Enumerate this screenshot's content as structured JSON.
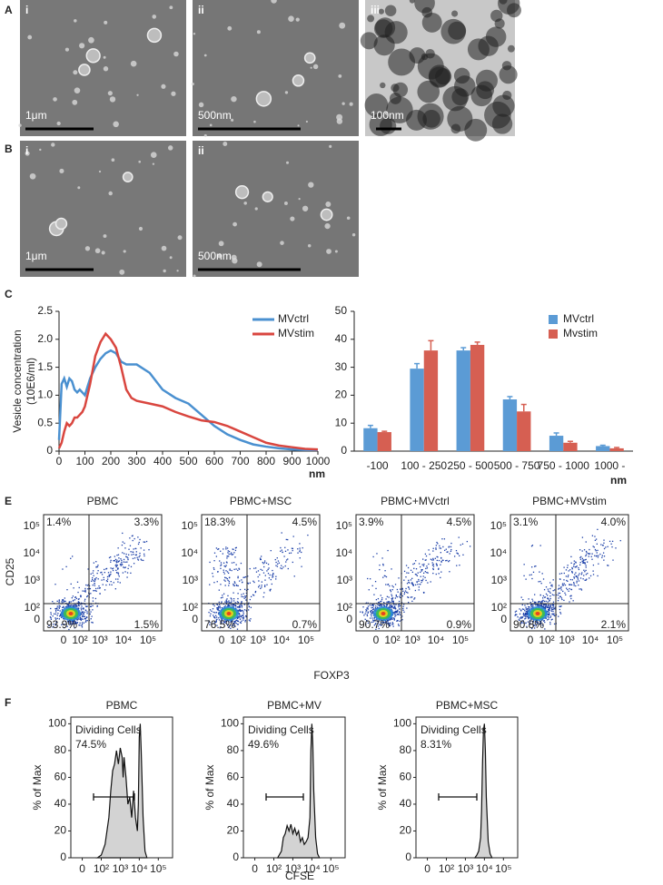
{
  "panel_labels": [
    "A",
    "B",
    "C",
    "E",
    "F"
  ],
  "micrographs": [
    {
      "label": "i",
      "scale": "1μm"
    },
    {
      "label": "ii",
      "scale": "500nm"
    },
    {
      "label": "iii",
      "scale": "100nm"
    },
    {
      "label": "i",
      "scale": "1μm"
    },
    {
      "label": "ii",
      "scale": "500nm"
    }
  ],
  "chart_data": [
    {
      "type": "line",
      "y_label": [
        "Vesicle concentration",
        "(10E6/ml)"
      ],
      "x_unit": "nm",
      "legend": "upper right",
      "x": [
        0,
        10,
        20,
        30,
        40,
        50,
        60,
        70,
        80,
        90,
        100,
        120,
        140,
        160,
        180,
        200,
        220,
        240,
        260,
        280,
        300,
        350,
        400,
        450,
        500,
        550,
        600,
        650,
        700,
        750,
        800,
        850,
        900,
        950,
        1000
      ],
      "series": [
        {
          "name": "MVctrl",
          "color": "#4a90d0",
          "values": [
            0.2,
            1.2,
            1.3,
            1.15,
            1.3,
            1.25,
            1.1,
            1.05,
            1.1,
            1.05,
            1.0,
            1.3,
            1.5,
            1.65,
            1.75,
            1.8,
            1.75,
            1.6,
            1.55,
            1.55,
            1.55,
            1.4,
            1.1,
            0.95,
            0.85,
            0.65,
            0.45,
            0.3,
            0.2,
            0.12,
            0.08,
            0.05,
            0.03,
            0.02,
            0.02
          ]
        },
        {
          "name": "MVstim",
          "color": "#d9463f",
          "values": [
            0.05,
            0.15,
            0.35,
            0.5,
            0.45,
            0.5,
            0.6,
            0.6,
            0.65,
            0.7,
            0.8,
            1.2,
            1.7,
            1.95,
            2.1,
            2.0,
            1.85,
            1.5,
            1.1,
            0.95,
            0.9,
            0.85,
            0.8,
            0.7,
            0.62,
            0.55,
            0.52,
            0.45,
            0.35,
            0.25,
            0.15,
            0.1,
            0.07,
            0.04,
            0.03
          ]
        }
      ],
      "xlim": [
        0,
        1000
      ],
      "xticks": [
        0,
        100,
        200,
        300,
        400,
        500,
        600,
        700,
        800,
        900,
        1000
      ],
      "ylim": [
        0,
        2.5
      ],
      "yticks": [
        0,
        0.5,
        {
          "value": 1,
          "label": "1.0"
        },
        1.5,
        {
          "value": 2,
          "label": "2.0"
        },
        2.5
      ]
    },
    {
      "type": "bar",
      "x_unit": "nm",
      "legend": "upper right",
      "categories": [
        "-100",
        "100 - 250",
        "250 - 500",
        "500 - 750",
        "750 - 1000",
        "1000 -"
      ],
      "series": [
        {
          "name": "MVctrl",
          "color": "#5b9bd5",
          "values": [
            8.2,
            29.5,
            36,
            18.5,
            5.5,
            1.8
          ],
          "errors": [
            1,
            1.8,
            1,
            1,
            1,
            0.3
          ]
        },
        {
          "name": "Mvstim",
          "color": "#d65f52",
          "values": [
            6.8,
            36,
            38,
            14.2,
            3,
            1
          ],
          "errors": [
            0.3,
            3.5,
            1,
            2.5,
            0.5,
            0.3
          ]
        }
      ],
      "ylim": [
        0,
        50
      ],
      "yticks": [
        0,
        10,
        20,
        30,
        40,
        50
      ]
    },
    {
      "type": "histogram-area",
      "title": "PBMC",
      "annotation": "Dividing Cells",
      "gate_value": "74.5%",
      "y_label": "% of Max",
      "x": [
        1.8,
        2.0,
        2.2,
        2.4,
        2.5,
        2.6,
        2.7,
        2.8,
        2.9,
        3.0,
        3.1,
        3.15,
        3.2,
        3.3,
        3.4,
        3.5,
        3.6,
        3.7,
        3.8,
        3.9,
        3.95,
        4.0,
        4.05,
        4.1,
        4.2,
        4.3,
        4.4
      ],
      "values": [
        0,
        2,
        10,
        30,
        50,
        65,
        70,
        80,
        70,
        82,
        75,
        60,
        75,
        60,
        40,
        45,
        30,
        50,
        30,
        20,
        40,
        90,
        100,
        80,
        30,
        5,
        0
      ],
      "xlim": [
        0.4,
        5.75
      ],
      "xticks": [
        {
          "value": 1,
          "label": "0"
        },
        {
          "value": 2,
          "label": "10²"
        },
        {
          "value": 3,
          "label": "10³"
        },
        {
          "value": 4,
          "label": "10⁴"
        },
        {
          "value": 5,
          "label": "10⁵"
        }
      ],
      "ylim": [
        0,
        105
      ],
      "yticks": [
        0,
        20,
        40,
        60,
        80,
        100
      ]
    },
    {
      "type": "histogram-area",
      "title": "PBMC+MV",
      "annotation": "Dividing Cells",
      "gate_value": "49.6%",
      "y_label": "% of Max",
      "x": [
        2.2,
        2.4,
        2.5,
        2.6,
        2.7,
        2.8,
        2.9,
        3.0,
        3.1,
        3.2,
        3.3,
        3.4,
        3.5,
        3.6,
        3.7,
        3.8,
        3.9,
        3.95,
        4.0,
        4.05,
        4.1,
        4.2,
        4.3,
        4.4
      ],
      "values": [
        0,
        5,
        15,
        18,
        24,
        20,
        25,
        18,
        22,
        17,
        20,
        12,
        15,
        10,
        12,
        15,
        30,
        80,
        100,
        85,
        50,
        15,
        3,
        0
      ],
      "xlim": [
        0.4,
        5.75
      ],
      "xticks": [
        {
          "value": 1,
          "label": "0"
        },
        {
          "value": 2,
          "label": "10²"
        },
        {
          "value": 3,
          "label": "10³"
        },
        {
          "value": 4,
          "label": "10⁴"
        },
        {
          "value": 5,
          "label": "10⁵"
        }
      ],
      "ylim": [
        0,
        105
      ],
      "yticks": [
        0,
        20,
        40,
        60,
        80,
        100
      ]
    },
    {
      "type": "histogram-area",
      "title": "PBMC+MSC",
      "annotation": "Dividing Cells",
      "gate_value": "8.31%",
      "y_label": "% of Max",
      "x": [
        3.5,
        3.6,
        3.7,
        3.8,
        3.85,
        3.9,
        3.95,
        4.0,
        4.05,
        4.1,
        4.2,
        4.3,
        4.4
      ],
      "values": [
        0,
        2,
        5,
        15,
        35,
        70,
        95,
        100,
        80,
        45,
        12,
        3,
        0
      ],
      "xlim": [
        0.4,
        5.75
      ],
      "xticks": [
        {
          "value": 1,
          "label": "0"
        },
        {
          "value": 2,
          "label": "10²"
        },
        {
          "value": 3,
          "label": "10³"
        },
        {
          "value": 4,
          "label": "10⁴"
        },
        {
          "value": 5,
          "label": "10⁵"
        }
      ],
      "ylim": [
        0,
        105
      ],
      "yticks": [
        0,
        20,
        40,
        60,
        80,
        100
      ]
    }
  ],
  "histogram_x_label": "CFSE",
  "flow": {
    "y_label": "CD25",
    "x_label": "FOXP3",
    "ticks": [
      "0",
      "10²",
      "10³",
      "10⁴",
      "10⁵"
    ],
    "plots": [
      {
        "title": "PBMC",
        "quadrants": [
          "1.4%",
          "3.3%",
          "93.9%",
          "1.5%"
        ]
      },
      {
        "title": "PBMC+MSC",
        "quadrants": [
          "18.3%",
          "4.5%",
          "76.5%",
          "0.7%"
        ]
      },
      {
        "title": "PBMC+MVctrl",
        "quadrants": [
          "3.9%",
          "4.5%",
          "90.7%",
          "0.9%"
        ]
      },
      {
        "title": "PBMC+MVstim",
        "quadrants": [
          "3.1%",
          "4.0%",
          "90.8%",
          "2.1%"
        ]
      }
    ]
  }
}
